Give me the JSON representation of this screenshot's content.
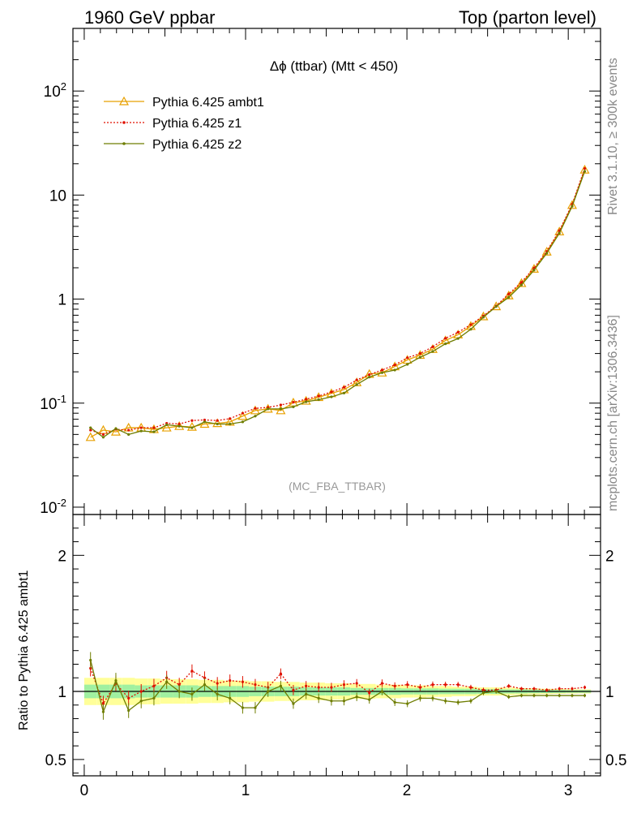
{
  "header": {
    "left": "1960 GeV ppbar",
    "right": "Top (parton level)"
  },
  "side_text": {
    "rivet": "Rivet 3.1.10, ≥ 300k events",
    "mcplots": "mcplots.cern.ch [arXiv:1306.3436]"
  },
  "colors": {
    "ambt1": "#e8a000",
    "z1": "#e01000",
    "z2": "#6e7d00",
    "band_inner": "#a0f0a0",
    "band_outer": "#ffff99"
  },
  "chart_data": [
    {
      "type": "line",
      "title": "Δϕ (ttbar) (Mtt < 450)",
      "watermark": "(MC_FBA_TTBAR)",
      "yscale": "log",
      "xlim": [
        -0.07,
        3.2
      ],
      "ylim": [
        0.0085,
        400
      ],
      "ytick_labels": [
        "10^-2",
        "10^-1",
        "1",
        "10",
        "10^2"
      ],
      "legend_placement": "top-left",
      "x": [
        0.039,
        0.118,
        0.196,
        0.275,
        0.353,
        0.432,
        0.511,
        0.589,
        0.668,
        0.746,
        0.825,
        0.903,
        0.982,
        1.06,
        1.139,
        1.218,
        1.296,
        1.375,
        1.453,
        1.532,
        1.61,
        1.689,
        1.767,
        1.846,
        1.925,
        2.003,
        2.082,
        2.16,
        2.239,
        2.317,
        2.396,
        2.474,
        2.553,
        2.631,
        2.71,
        2.788,
        2.867,
        2.945,
        3.024,
        3.102
      ],
      "series": [
        {
          "name": "Pythia 6.425 ambt1",
          "color_key": "ambt1",
          "marker": "triangle",
          "values": [
            0.047,
            0.055,
            0.053,
            0.058,
            0.058,
            0.056,
            0.058,
            0.06,
            0.059,
            0.063,
            0.064,
            0.066,
            0.075,
            0.085,
            0.088,
            0.085,
            0.101,
            0.105,
            0.114,
            0.124,
            0.135,
            0.158,
            0.19,
            0.196,
            0.225,
            0.26,
            0.29,
            0.33,
            0.4,
            0.455,
            0.55,
            0.68,
            0.85,
            1.08,
            1.42,
            1.95,
            2.85,
            4.45,
            8.0,
            17.5
          ]
        },
        {
          "name": "Pythia 6.425 z1",
          "color_key": "z1",
          "marker": "dot",
          "values": [
            0.055,
            0.05,
            0.056,
            0.055,
            0.058,
            0.058,
            0.064,
            0.063,
            0.068,
            0.069,
            0.068,
            0.071,
            0.08,
            0.089,
            0.091,
            0.096,
            0.102,
            0.109,
            0.117,
            0.128,
            0.142,
            0.167,
            0.188,
            0.208,
            0.233,
            0.273,
            0.3,
            0.348,
            0.42,
            0.48,
            0.568,
            0.69,
            0.86,
            1.12,
            1.45,
            1.99,
            2.88,
            4.55,
            8.15,
            18.0
          ]
        },
        {
          "name": "Pythia 6.425 z2",
          "color_key": "z2",
          "marker": "dot",
          "values": [
            0.058,
            0.047,
            0.057,
            0.05,
            0.054,
            0.053,
            0.062,
            0.06,
            0.058,
            0.066,
            0.063,
            0.063,
            0.066,
            0.075,
            0.088,
            0.088,
            0.092,
            0.103,
            0.108,
            0.115,
            0.125,
            0.151,
            0.178,
            0.196,
            0.208,
            0.236,
            0.276,
            0.314,
            0.372,
            0.418,
            0.513,
            0.67,
            0.848,
            1.04,
            1.37,
            1.9,
            2.76,
            4.3,
            7.8,
            16.9
          ]
        }
      ]
    },
    {
      "type": "line",
      "ylabel": "Ratio to Pythia 6.425 ambt1",
      "xlim": [
        -0.07,
        3.2
      ],
      "ylim": [
        0.38,
        2.3
      ],
      "ytick_labels": [
        "0.5",
        "1",
        "2"
      ],
      "xtick_labels": [
        "0",
        "1",
        "2",
        "3"
      ],
      "x": [
        0.039,
        0.118,
        0.196,
        0.275,
        0.353,
        0.432,
        0.511,
        0.589,
        0.668,
        0.746,
        0.825,
        0.903,
        0.982,
        1.06,
        1.139,
        1.218,
        1.296,
        1.375,
        1.453,
        1.532,
        1.61,
        1.689,
        1.767,
        1.846,
        1.925,
        2.003,
        2.082,
        2.16,
        2.239,
        2.317,
        2.396,
        2.474,
        2.553,
        2.631,
        2.71,
        2.788,
        2.867,
        2.945,
        3.024,
        3.102
      ],
      "band_inner_halfwidth": [
        0.05,
        0.05,
        0.05,
        0.05,
        0.045,
        0.045,
        0.045,
        0.045,
        0.045,
        0.04,
        0.04,
        0.04,
        0.04,
        0.035,
        0.035,
        0.035,
        0.035,
        0.03,
        0.03,
        0.03,
        0.03,
        0.025,
        0.025,
        0.025,
        0.025,
        0.022,
        0.022,
        0.022,
        0.02,
        0.02,
        0.02,
        0.018,
        0.018,
        0.015,
        0.015,
        0.013,
        0.012,
        0.011,
        0.01,
        0.01
      ],
      "band_outer_halfwidth": [
        0.1,
        0.1,
        0.1,
        0.1,
        0.095,
        0.095,
        0.09,
        0.09,
        0.09,
        0.085,
        0.085,
        0.08,
        0.08,
        0.075,
        0.075,
        0.07,
        0.07,
        0.065,
        0.065,
        0.06,
        0.06,
        0.055,
        0.055,
        0.05,
        0.05,
        0.045,
        0.045,
        0.04,
        0.04,
        0.035,
        0.035,
        0.03,
        0.03,
        0.028,
        0.025,
        0.022,
        0.02,
        0.018,
        0.016,
        0.015
      ],
      "series": [
        {
          "name": "Pythia 6.425 z1",
          "color_key": "z1",
          "values": [
            1.17,
            0.91,
            1.06,
            0.95,
            1.0,
            1.04,
            1.1,
            1.05,
            1.15,
            1.1,
            1.06,
            1.08,
            1.07,
            1.05,
            1.03,
            1.13,
            1.01,
            1.04,
            1.03,
            1.03,
            1.05,
            1.06,
            0.99,
            1.06,
            1.04,
            1.05,
            1.03,
            1.05,
            1.05,
            1.05,
            1.03,
            1.01,
            1.01,
            1.04,
            1.02,
            1.02,
            1.01,
            1.02,
            1.02,
            1.03
          ]
        },
        {
          "name": "Pythia 6.425 z2",
          "color_key": "z2",
          "values": [
            1.23,
            0.85,
            1.08,
            0.86,
            0.93,
            0.95,
            1.07,
            1.0,
            0.98,
            1.05,
            0.98,
            0.95,
            0.88,
            0.88,
            1.0,
            1.04,
            0.91,
            0.98,
            0.95,
            0.93,
            0.93,
            0.96,
            0.94,
            1.0,
            0.92,
            0.91,
            0.95,
            0.95,
            0.93,
            0.92,
            0.93,
            0.99,
            1.0,
            0.96,
            0.97,
            0.97,
            0.97,
            0.97,
            0.97,
            0.97
          ]
        }
      ]
    }
  ]
}
